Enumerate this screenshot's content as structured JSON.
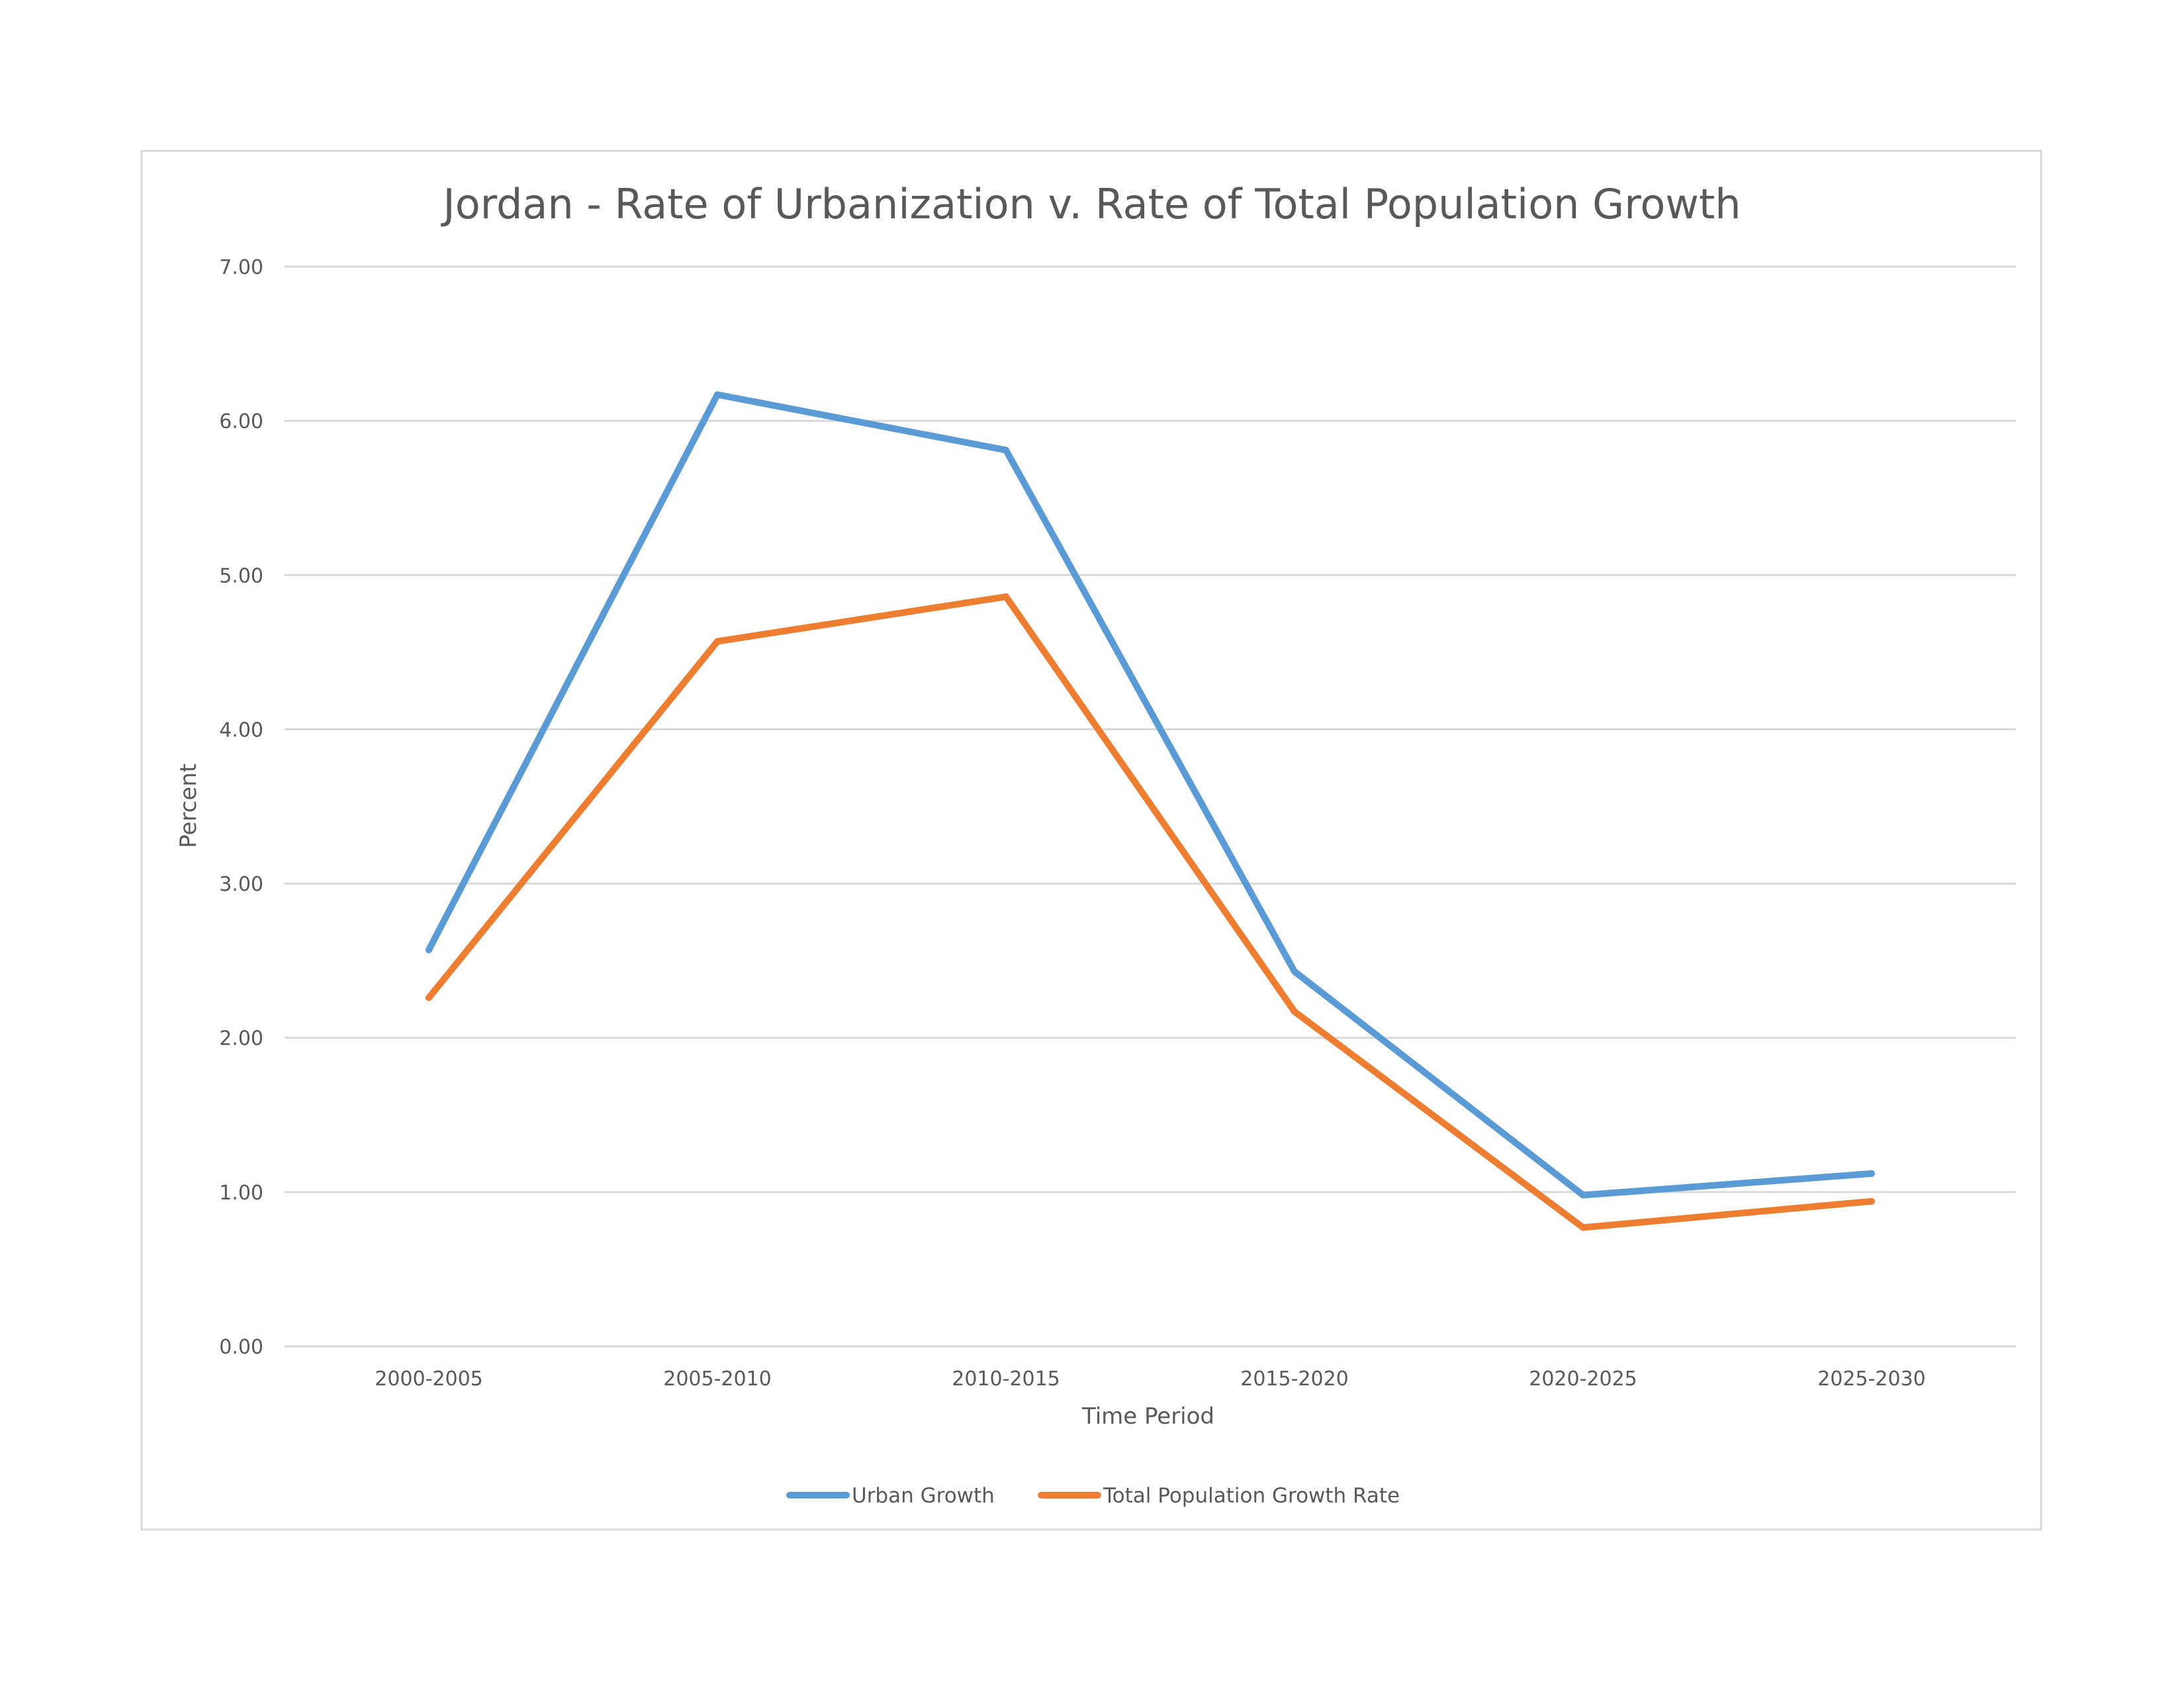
{
  "chart_data": {
    "type": "line",
    "title": "Jordan - Rate of Urbanization v. Rate of Total Population Growth",
    "xlabel": "Time Period",
    "ylabel": "Percent",
    "categories": [
      "2000-2005",
      "2005-2010",
      "2010-2015",
      "2015-2020",
      "2020-2025",
      "2025-2030"
    ],
    "y_ticks": [
      "0.00",
      "1.00",
      "2.00",
      "3.00",
      "4.00",
      "5.00",
      "6.00",
      "7.00"
    ],
    "ylim": [
      0,
      7
    ],
    "grid": true,
    "legend_position": "bottom",
    "series": [
      {
        "name": "Urban Growth",
        "color": "#5b9bd5",
        "values": [
          2.57,
          6.17,
          5.81,
          2.43,
          0.98,
          1.12
        ]
      },
      {
        "name": "Total Population Growth Rate",
        "color": "#ed7d31",
        "values": [
          2.26,
          4.57,
          4.86,
          2.17,
          0.77,
          0.94
        ]
      }
    ]
  }
}
